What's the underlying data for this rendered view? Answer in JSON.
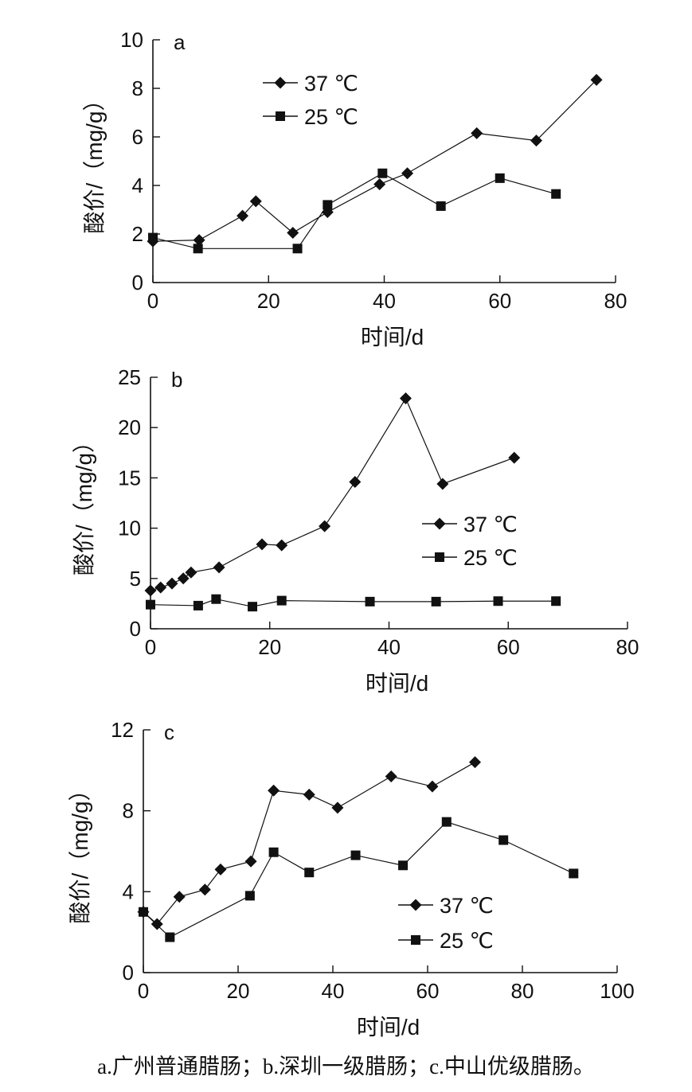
{
  "chart_data": [
    {
      "type": "line",
      "panel_label": "a",
      "xlabel": "时间/d",
      "ylabel": "酸价/（mg/g）",
      "xlim": [
        0,
        80
      ],
      "ylim": [
        0,
        10
      ],
      "xticks": [
        0,
        20,
        40,
        60,
        80
      ],
      "yticks": [
        0,
        2,
        4,
        6,
        8,
        10
      ],
      "grid": false,
      "legend_position": "top-left",
      "series": [
        {
          "name": "37 ℃",
          "marker": "diamond",
          "points": [
            [
              0,
              1.7
            ],
            [
              8,
              1.75
            ],
            [
              15.5,
              2.75
            ],
            [
              17.8,
              3.35
            ],
            [
              24.2,
              2.05
            ],
            [
              30.2,
              2.9
            ],
            [
              39.2,
              4.05
            ],
            [
              44,
              4.5
            ],
            [
              56,
              6.15
            ],
            [
              66.3,
              5.85
            ],
            [
              76.7,
              8.35
            ]
          ]
        },
        {
          "name": "25 ℃",
          "marker": "square",
          "points": [
            [
              0,
              1.85
            ],
            [
              7.8,
              1.4
            ],
            [
              25,
              1.4
            ],
            [
              30.2,
              3.2
            ],
            [
              39.7,
              4.5
            ],
            [
              49.8,
              3.15
            ],
            [
              60,
              4.3
            ],
            [
              69.7,
              3.65
            ]
          ]
        }
      ]
    },
    {
      "type": "line",
      "panel_label": "b",
      "xlabel": "时间/d",
      "ylabel": "酸价/（mg/g）",
      "xlim": [
        0,
        80
      ],
      "ylim": [
        0,
        25
      ],
      "xticks": [
        0,
        20,
        40,
        60,
        80
      ],
      "yticks": [
        0,
        5,
        10,
        15,
        20,
        25
      ],
      "grid": false,
      "legend_position": "center-right",
      "series": [
        {
          "name": "37 ℃",
          "marker": "diamond",
          "points": [
            [
              0,
              3.8
            ],
            [
              1.7,
              4.1
            ],
            [
              3.6,
              4.5
            ],
            [
              5.5,
              5.0
            ],
            [
              6.8,
              5.6
            ],
            [
              11.5,
              6.1
            ],
            [
              18.7,
              8.4
            ],
            [
              22,
              8.3
            ],
            [
              29.2,
              10.2
            ],
            [
              34.3,
              14.6
            ],
            [
              42.8,
              22.9
            ],
            [
              49,
              14.4
            ],
            [
              61,
              17.0
            ]
          ]
        },
        {
          "name": "25 ℃",
          "marker": "square",
          "points": [
            [
              0,
              2.4
            ],
            [
              8,
              2.3
            ],
            [
              11,
              2.95
            ],
            [
              17.1,
              2.2
            ],
            [
              22,
              2.8
            ],
            [
              36.8,
              2.7
            ],
            [
              47.9,
              2.7
            ],
            [
              58.3,
              2.75
            ],
            [
              68,
              2.75
            ]
          ]
        }
      ]
    },
    {
      "type": "line",
      "panel_label": "c",
      "xlabel": "时间/d",
      "ylabel": "酸价/（mg/g）",
      "xlim": [
        0,
        100
      ],
      "ylim": [
        0,
        12
      ],
      "xticks": [
        0,
        20,
        40,
        60,
        80,
        100
      ],
      "yticks": [
        0,
        4,
        8,
        12
      ],
      "grid": false,
      "legend_position": "bottom-center",
      "series": [
        {
          "name": "37 ℃",
          "marker": "diamond",
          "points": [
            [
              0,
              3.0
            ],
            [
              2.9,
              2.4
            ],
            [
              7.6,
              3.75
            ],
            [
              13,
              4.1
            ],
            [
              16.3,
              5.1
            ],
            [
              22.7,
              5.5
            ],
            [
              27.5,
              9.0
            ],
            [
              35,
              8.8
            ],
            [
              41,
              8.15
            ],
            [
              52.3,
              9.7
            ],
            [
              61,
              9.2
            ],
            [
              70,
              10.4
            ]
          ]
        },
        {
          "name": "25 ℃",
          "marker": "square",
          "points": [
            [
              0,
              3.0
            ],
            [
              5.6,
              1.75
            ],
            [
              22.5,
              3.8
            ],
            [
              27.5,
              5.95
            ],
            [
              35,
              4.95
            ],
            [
              44.8,
              5.8
            ],
            [
              54.8,
              5.3
            ],
            [
              64,
              7.45
            ],
            [
              76,
              6.55
            ],
            [
              90.8,
              4.9
            ]
          ]
        }
      ]
    }
  ],
  "caption": "a.广州普通腊肠；b.深圳一级腊肠；c.中山优级腊肠。"
}
